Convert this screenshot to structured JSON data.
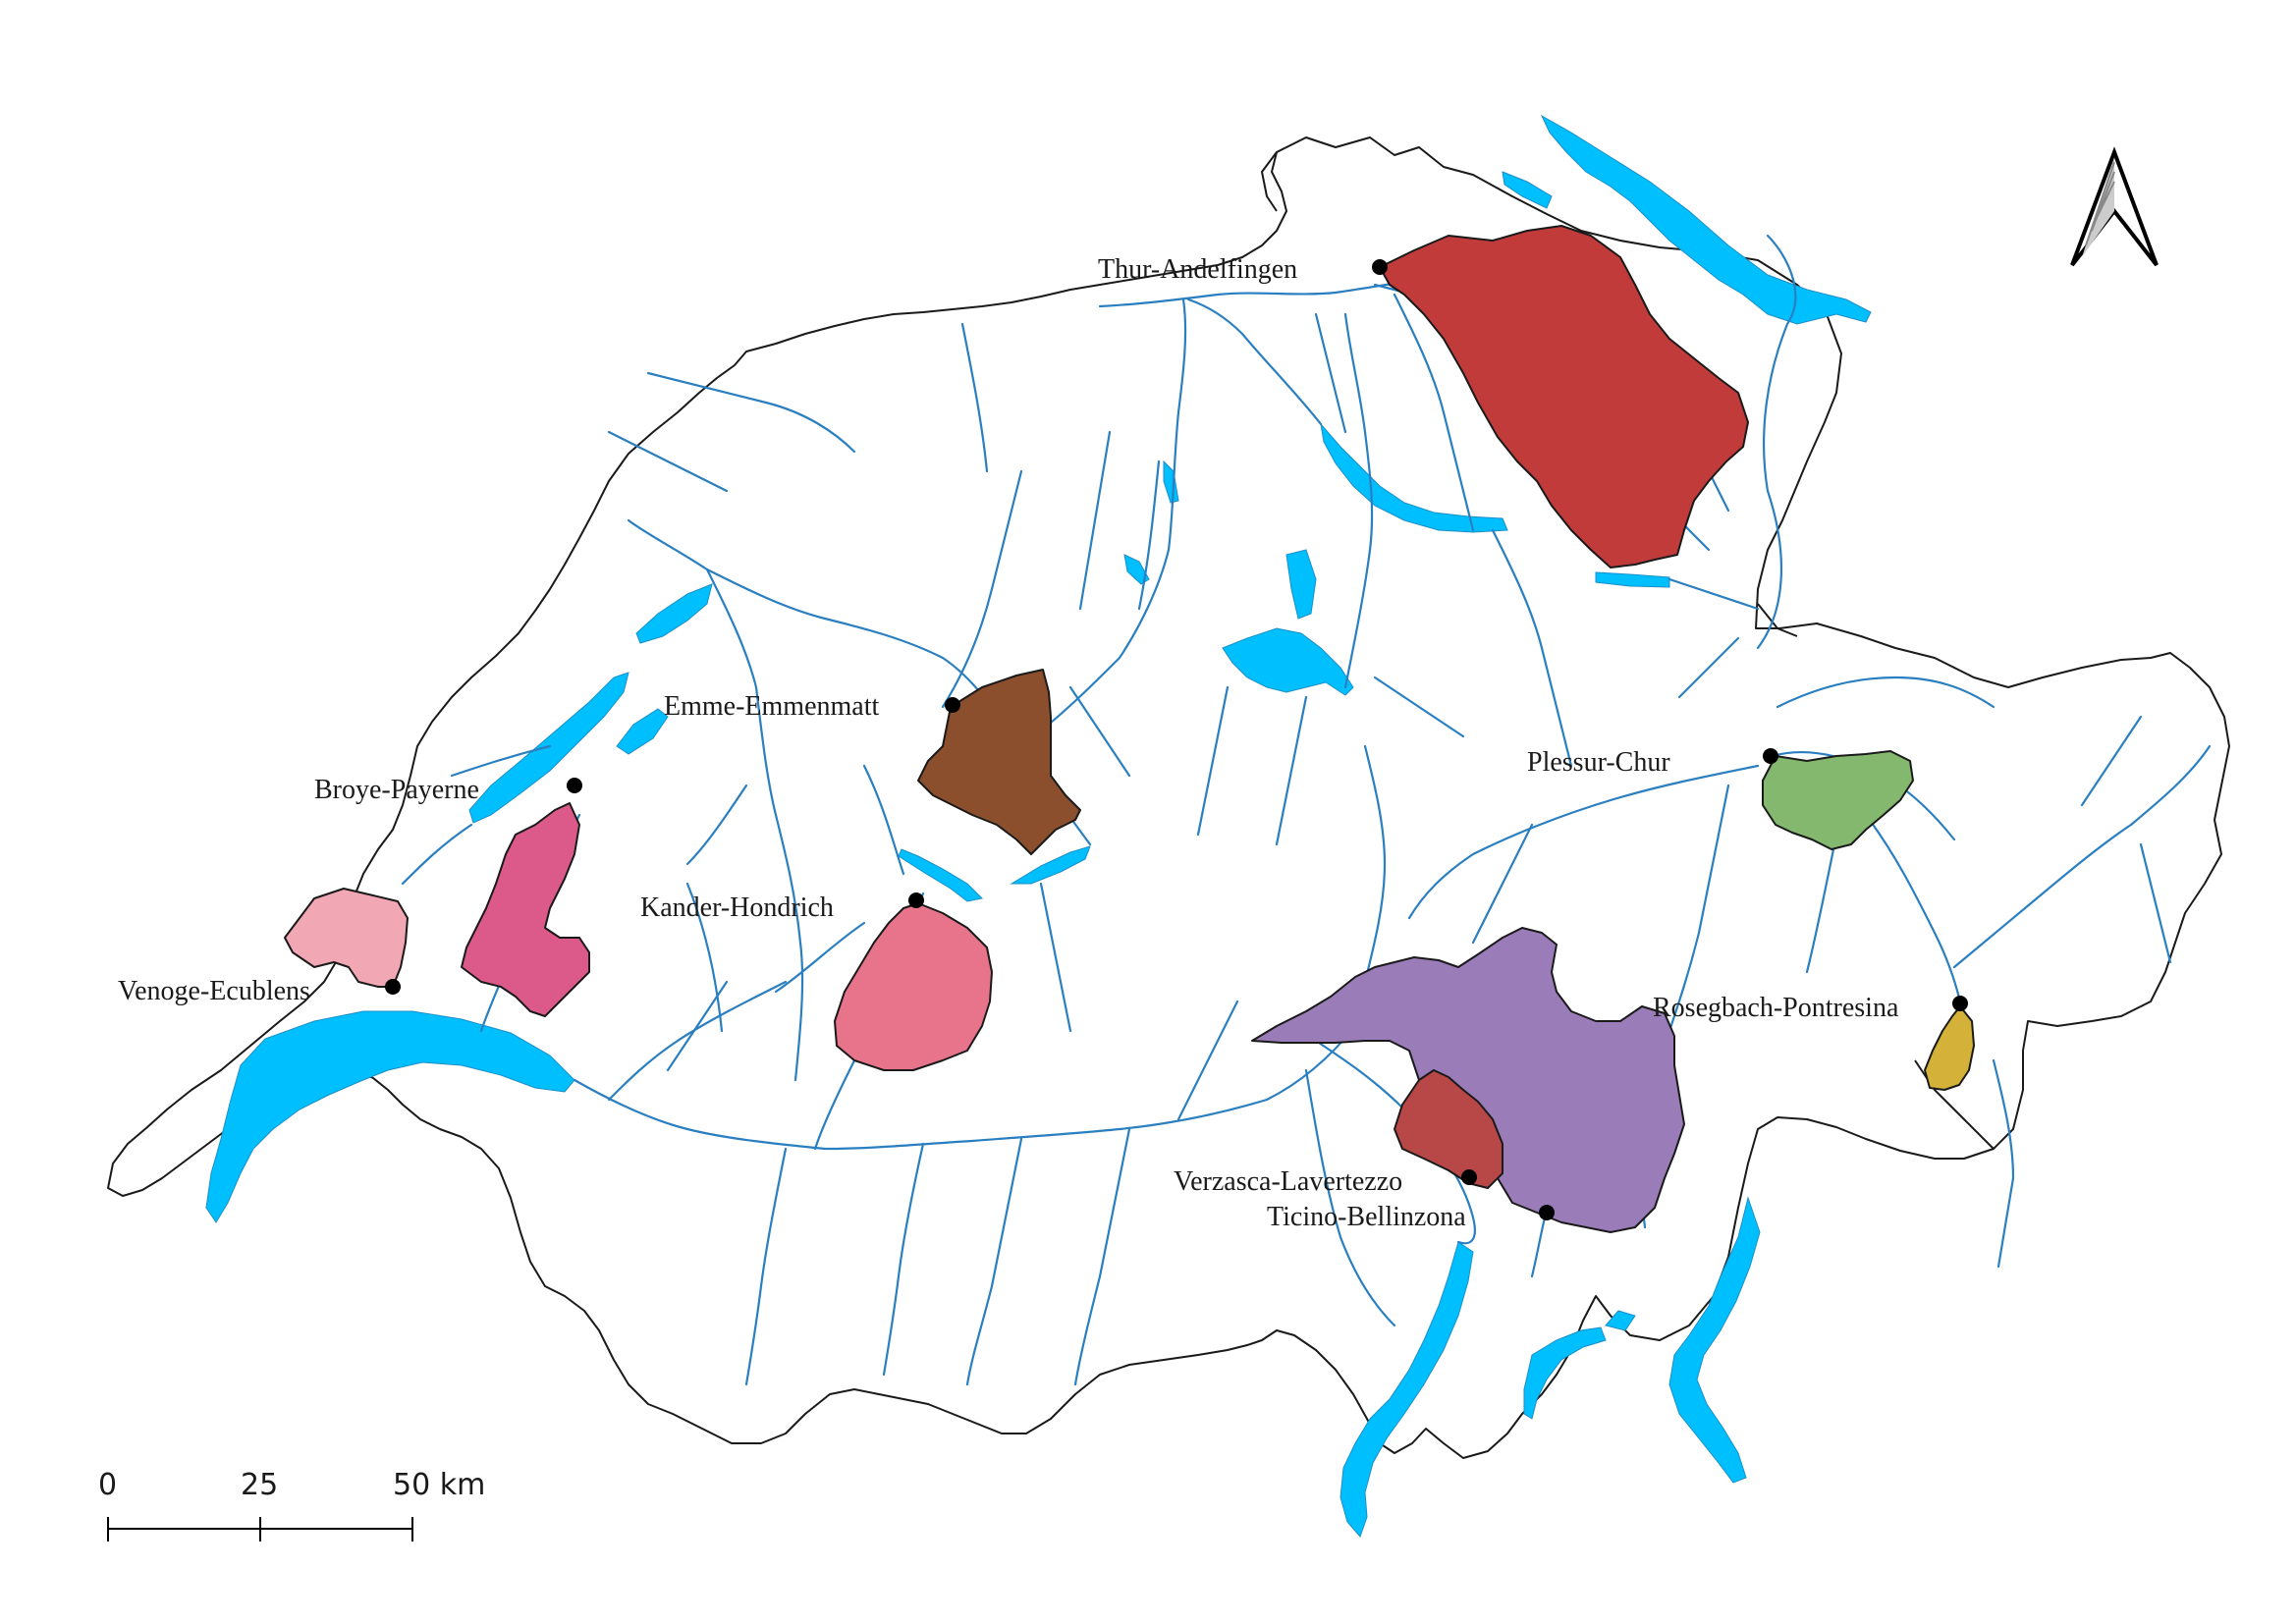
{
  "map": {
    "colors": {
      "background": "#ffffff",
      "lake": "#00bfff",
      "river": "#2a7fc1",
      "border": "#1a1a1a"
    },
    "catchments": [
      {
        "id": "thur",
        "label": "Thur-Andelfingen",
        "color": "#c23b3b"
      },
      {
        "id": "emme",
        "label": "Emme-Emmenmatt",
        "color": "#8b4f2e"
      },
      {
        "id": "broye",
        "label": "Broye-Payerne",
        "color": "#dc5a8a"
      },
      {
        "id": "venoge",
        "label": "Venoge-Ecublens",
        "color": "#f2a7b4"
      },
      {
        "id": "kander",
        "label": "Kander-Hondrich",
        "color": "#e8748c"
      },
      {
        "id": "plessur",
        "label": "Plessur-Chur",
        "color": "#84b86e"
      },
      {
        "id": "rosegbach",
        "label": "Rosegbach-Pontresina",
        "color": "#d4b23a"
      },
      {
        "id": "ticino",
        "label": "Ticino-Bellinzona",
        "color": "#9a7cb8"
      },
      {
        "id": "verzasca",
        "label": "Verzasca-Lavertezzo",
        "color": "#b84848"
      }
    ],
    "north_arrow": {
      "icon": "north-arrow-icon"
    },
    "scale_bar": {
      "ticks": [
        "0",
        "25",
        "50 km"
      ]
    }
  }
}
